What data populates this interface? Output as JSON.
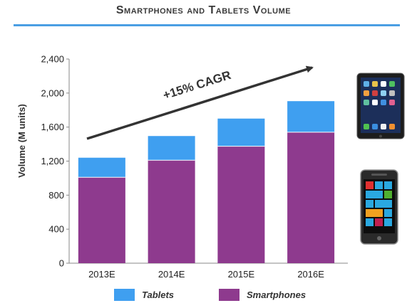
{
  "header": {
    "title": "Smartphones and Tablets  Volume"
  },
  "chart_data": {
    "type": "bar",
    "stacked": true,
    "categories": [
      "2013E",
      "2014E",
      "2015E",
      "2016E"
    ],
    "series": [
      {
        "name": "Smartphones",
        "values": [
          1010,
          1210,
          1375,
          1540
        ],
        "color": "#8e3a8e"
      },
      {
        "name": "Tablets",
        "values": [
          230,
          285,
          325,
          365
        ],
        "color": "#3f9ff0"
      }
    ],
    "ylabel": "Volume (M units)",
    "ylim": [
      0,
      2400
    ],
    "yticks": [
      "0",
      "400",
      "800",
      "1,200",
      "1,600",
      "2,000",
      "2,400"
    ],
    "annotation": "+15% CAGR",
    "legend_order": [
      "Tablets",
      "Smartphones"
    ],
    "legend_position": "bottom",
    "grid": false
  },
  "images": {
    "tablet": "tablet-image",
    "phone": "windows-phone-image"
  }
}
